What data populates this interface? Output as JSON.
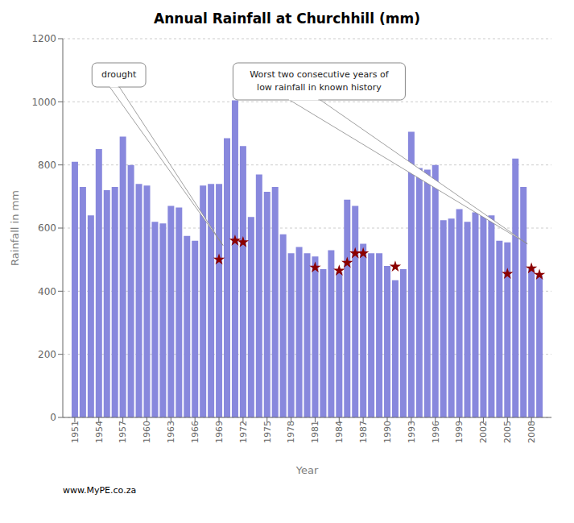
{
  "chart_data": {
    "type": "bar",
    "title": "Annual Rainfall at Churchhill (mm)",
    "xlabel": "Year",
    "ylabel": "Rainfall in mm",
    "xlim": [
      1949.5,
      2010.5
    ],
    "xticks": [
      1951,
      1954,
      1957,
      1960,
      1963,
      1966,
      1969,
      1972,
      1975,
      1978,
      1981,
      1984,
      1987,
      1990,
      1993,
      1996,
      1999,
      2002,
      2005,
      2008
    ],
    "ylim": [
      0,
      1200
    ],
    "yticks": [
      0,
      200,
      400,
      600,
      800,
      1000,
      1200
    ],
    "grid": true,
    "series": [
      {
        "type": "bar",
        "color": "#8888dd",
        "x": [
          1951,
          1952,
          1953,
          1954,
          1955,
          1956,
          1957,
          1958,
          1959,
          1960,
          1961,
          1962,
          1963,
          1964,
          1965,
          1966,
          1967,
          1968,
          1969,
          1970,
          1971,
          1972,
          1973,
          1974,
          1975,
          1976,
          1977,
          1978,
          1979,
          1980,
          1981,
          1982,
          1983,
          1984,
          1985,
          1986,
          1987,
          1988,
          1989,
          1990,
          1991,
          1992,
          1993,
          1994,
          1995,
          1996,
          1997,
          1998,
          1999,
          2000,
          2001,
          2002,
          2003,
          2004,
          2005,
          2006,
          2007,
          2008,
          2009
        ],
        "values": [
          810,
          730,
          640,
          850,
          720,
          730,
          890,
          800,
          740,
          735,
          620,
          615,
          670,
          665,
          575,
          560,
          735,
          740,
          740,
          885,
          1005,
          860,
          635,
          770,
          715,
          730,
          580,
          520,
          540,
          520,
          510,
          470,
          530,
          460,
          690,
          670,
          550,
          520,
          520,
          480,
          435,
          470,
          905,
          790,
          785,
          800,
          625,
          630,
          660,
          620,
          650,
          640,
          640,
          560,
          555,
          820,
          730,
          470,
          450
        ]
      },
      {
        "type": "scatter",
        "color": "darkred",
        "marker": "star",
        "x": [
          1969,
          1971,
          1972,
          1981,
          1984,
          1985,
          1986,
          1987,
          1991,
          2005,
          2008,
          2009
        ],
        "values": [
          500,
          560,
          555,
          475,
          465,
          490,
          520,
          520,
          478,
          455,
          472,
          452
        ]
      }
    ],
    "annotations": [
      {
        "text": "drought",
        "x": 1969.5,
        "y": 545
      },
      {
        "text": "Worst two consecutive years of\nlow rainfall in known history",
        "x": 2007.5,
        "y": 550
      }
    ],
    "watermark": "www.MyPE.co.za"
  }
}
